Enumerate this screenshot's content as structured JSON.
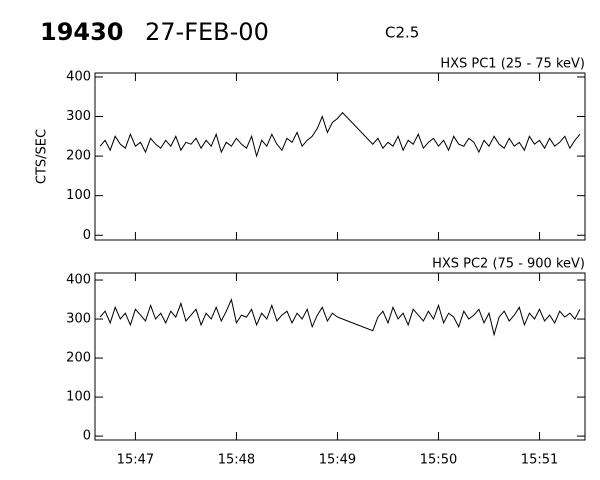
{
  "header": {
    "id": "19430",
    "date": "27-FEB-00",
    "class": "C2.5"
  },
  "chart_data": [
    {
      "type": "line",
      "title": "HXS PC1 (25 - 75 keV)",
      "ylabel": "CTS/SEC",
      "color": "#000000",
      "xlim": [
        946.6,
        951.45
      ],
      "xticks": [
        {
          "value": 947,
          "label": "15:47"
        },
        {
          "value": 948,
          "label": "15:48"
        },
        {
          "value": 949,
          "label": "15:49"
        },
        {
          "value": 950,
          "label": "15:50"
        },
        {
          "value": 951,
          "label": "15:51"
        }
      ],
      "ylim": [
        -12,
        410
      ],
      "yticks": [
        0,
        100,
        200,
        300,
        400
      ],
      "x": [
        946.65,
        946.7,
        946.75,
        946.8,
        946.85,
        946.9,
        946.95,
        947,
        947.05,
        947.1,
        947.15,
        947.2,
        947.25,
        947.3,
        947.35,
        947.4,
        947.45,
        947.5,
        947.55,
        947.6,
        947.65,
        947.7,
        947.75,
        947.8,
        947.85,
        947.9,
        947.95,
        948,
        948.05,
        948.1,
        948.15,
        948.2,
        948.25,
        948.3,
        948.35,
        948.4,
        948.45,
        948.5,
        948.55,
        948.6,
        948.65,
        948.7,
        948.75,
        948.8,
        948.85,
        948.9,
        948.95,
        949,
        949.05,
        949.35,
        949.4,
        949.45,
        949.5,
        949.55,
        949.6,
        949.65,
        949.7,
        949.75,
        949.8,
        949.85,
        949.9,
        949.95,
        950,
        950.05,
        950.1,
        950.15,
        950.2,
        950.25,
        950.3,
        950.35,
        950.4,
        950.45,
        950.5,
        950.55,
        950.6,
        950.65,
        950.7,
        950.75,
        950.8,
        950.85,
        950.9,
        950.95,
        951,
        951.05,
        951.1,
        951.15,
        951.2,
        951.25,
        951.3,
        951.35,
        951.4
      ],
      "values": [
        225,
        240,
        215,
        250,
        230,
        220,
        255,
        225,
        235,
        210,
        245,
        230,
        220,
        240,
        225,
        250,
        215,
        235,
        230,
        245,
        220,
        240,
        225,
        255,
        210,
        235,
        225,
        245,
        230,
        220,
        250,
        200,
        240,
        225,
        255,
        230,
        215,
        245,
        235,
        260,
        225,
        240,
        250,
        270,
        300,
        260,
        285,
        295,
        310,
        230,
        245,
        220,
        235,
        225,
        250,
        215,
        240,
        230,
        255,
        220,
        235,
        245,
        225,
        240,
        215,
        250,
        230,
        225,
        245,
        235,
        210,
        240,
        225,
        250,
        230,
        220,
        245,
        225,
        235,
        215,
        250,
        230,
        240,
        220,
        245,
        225,
        235,
        250,
        220,
        240,
        255
      ]
    },
    {
      "type": "line",
      "title": "HXS PC2 (75 - 900 keV)",
      "color": "#000000",
      "xlim": [
        946.6,
        951.45
      ],
      "xticks": [
        {
          "value": 947,
          "label": "15:47"
        },
        {
          "value": 948,
          "label": "15:48"
        },
        {
          "value": 949,
          "label": "15:49"
        },
        {
          "value": 950,
          "label": "15:50"
        },
        {
          "value": 951,
          "label": "15:51"
        }
      ],
      "ylim": [
        -10,
        418
      ],
      "yticks": [
        0,
        100,
        200,
        300,
        400
      ],
      "x": [
        946.65,
        946.7,
        946.75,
        946.8,
        946.85,
        946.9,
        946.95,
        947,
        947.05,
        947.1,
        947.15,
        947.2,
        947.25,
        947.3,
        947.35,
        947.4,
        947.45,
        947.5,
        947.55,
        947.6,
        947.65,
        947.7,
        947.75,
        947.8,
        947.85,
        947.9,
        947.95,
        948,
        948.05,
        948.1,
        948.15,
        948.2,
        948.25,
        948.3,
        948.35,
        948.4,
        948.45,
        948.5,
        948.55,
        948.6,
        948.65,
        948.7,
        948.75,
        948.8,
        948.85,
        948.9,
        948.95,
        949,
        949.05,
        949.35,
        949.4,
        949.45,
        949.5,
        949.55,
        949.6,
        949.65,
        949.7,
        949.75,
        949.8,
        949.85,
        949.9,
        949.95,
        950,
        950.05,
        950.1,
        950.15,
        950.2,
        950.25,
        950.3,
        950.35,
        950.4,
        950.45,
        950.5,
        950.55,
        950.6,
        950.65,
        950.7,
        950.75,
        950.8,
        950.85,
        950.9,
        950.95,
        951,
        951.05,
        951.1,
        951.15,
        951.2,
        951.25,
        951.3,
        951.35,
        951.4
      ],
      "values": [
        305,
        320,
        290,
        330,
        300,
        315,
        285,
        325,
        310,
        295,
        335,
        300,
        315,
        290,
        320,
        305,
        340,
        295,
        310,
        325,
        285,
        315,
        300,
        330,
        295,
        320,
        350,
        290,
        310,
        305,
        325,
        285,
        315,
        300,
        335,
        295,
        310,
        320,
        290,
        315,
        300,
        325,
        280,
        310,
        330,
        295,
        315,
        305,
        300,
        270,
        305,
        320,
        290,
        330,
        300,
        315,
        285,
        325,
        310,
        295,
        320,
        300,
        335,
        290,
        315,
        305,
        280,
        320,
        300,
        310,
        325,
        290,
        315,
        260,
        305,
        320,
        295,
        310,
        330,
        285,
        315,
        300,
        325,
        295,
        310,
        290,
        320,
        305,
        315,
        300,
        325
      ]
    }
  ]
}
